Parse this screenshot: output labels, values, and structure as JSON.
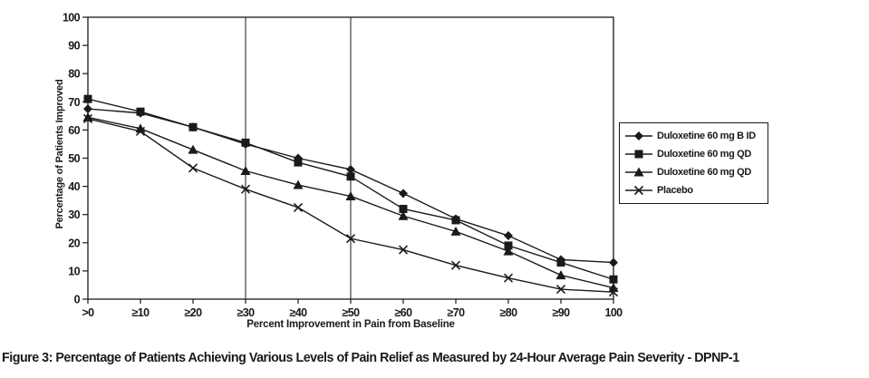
{
  "figure": {
    "caption": "Figure 3: Percentage of Patients Achieving Various Levels of Pain Relief as Measured by 24-Hour Average Pain Severity - DPNP-1"
  },
  "chart_data": {
    "type": "line",
    "title": "",
    "xlabel": "Percent Improvement in Pain from Baseline",
    "ylabel": "Percentage of Patients Improved",
    "categories": [
      ">0",
      "≥10",
      "≥20",
      "≥30",
      "≥40",
      "≥50",
      "≥60",
      "≥70",
      "≥80",
      "≥90",
      "100"
    ],
    "ylim": [
      0,
      100
    ],
    "ytick_step": 10,
    "grid": "off",
    "reference_lines_at": [
      "≥30",
      "≥50"
    ],
    "legend_position": "right",
    "line_color": "#1a1a1a",
    "background": "#ffffff",
    "series": [
      {
        "name": "Duloxetine 60 mg B ID",
        "marker": "diamond",
        "values": [
          67.5,
          66.0,
          61.0,
          55.0,
          50.0,
          46.0,
          37.5,
          28.5,
          22.5,
          14.0,
          13.0
        ]
      },
      {
        "name": "Duloxetine 60 mg QD",
        "marker": "square",
        "values": [
          71.0,
          66.5,
          61.0,
          55.5,
          48.5,
          43.5,
          32.0,
          28.0,
          19.0,
          13.0,
          7.0
        ]
      },
      {
        "name": "Duloxetine 60 mg QD",
        "marker": "triangle",
        "values": [
          64.5,
          60.5,
          53.0,
          45.5,
          40.5,
          36.5,
          29.5,
          24.0,
          17.0,
          8.5,
          4.0
        ]
      },
      {
        "name": "Placebo",
        "marker": "x",
        "values": [
          64.0,
          59.5,
          46.5,
          39.0,
          32.5,
          21.5,
          17.5,
          12.0,
          7.5,
          3.5,
          2.5
        ]
      }
    ]
  }
}
